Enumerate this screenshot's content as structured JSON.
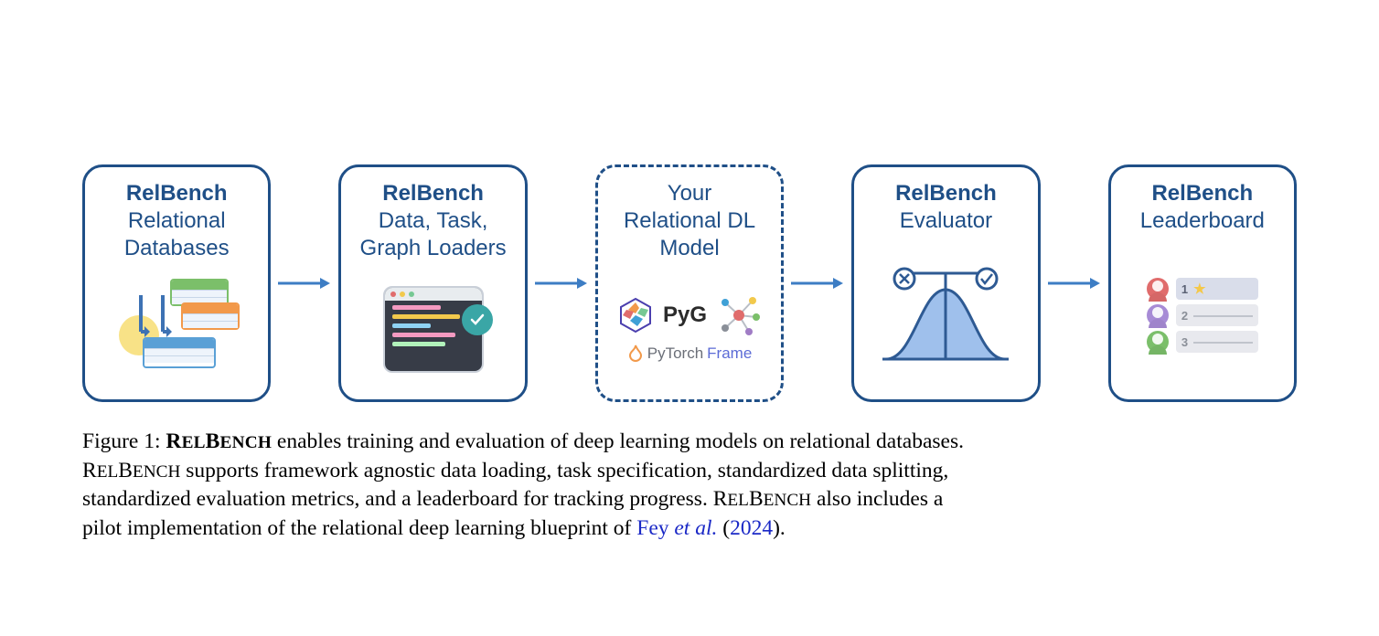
{
  "flow": {
    "border_color": "#1f4f87",
    "text_color": "#1f4f87",
    "dashed_color": "#1f4f87",
    "arrow_color": "#3d7dc4",
    "boxes": [
      {
        "title": "RelBench",
        "subtitle": "Relational\nDatabases"
      },
      {
        "title": "RelBench",
        "subtitle": "Data, Task,\nGraph Loaders"
      },
      {
        "title": "Your",
        "subtitle": "Relational DL\nModel",
        "dashed": true
      },
      {
        "title": "RelBench",
        "subtitle": "Evaluator"
      },
      {
        "title": "RelBench",
        "subtitle": "Leaderboard"
      }
    ]
  },
  "icons": {
    "db": {
      "table_colors": [
        "#7bbf6a",
        "#f2994a",
        "#5aa0d6"
      ],
      "circle_color": "#f7dd72",
      "arrow_color": "#3d72b4"
    },
    "code": {
      "dots": [
        "#e06c6c",
        "#f2c94c",
        "#76c893"
      ],
      "lines": [
        "#f49ac1",
        "#f2c94c",
        "#8fd3f4",
        "#f49ac1",
        "#b2f2bb"
      ]
    },
    "model": {
      "pyg_hex_colors": [
        "#4b3fae",
        "#f2994a",
        "#76c893",
        "#e06c6c",
        "#f7dd72",
        "#3fa0d6"
      ],
      "pyg_text": "PyG",
      "graph_nodes": [
        "#e06c6c",
        "#f2c94c",
        "#3fa0d6",
        "#7bbf6a",
        "#a07cc5",
        "#8a8f98"
      ],
      "ptf_flame": "#f2994a",
      "ptf_text1": "PyTorch",
      "ptf_text2": "Frame",
      "ptf_color1": "#6b6f78",
      "ptf_color2": "#5b6bd6"
    },
    "evaluator": {
      "curve_fill": "#9fc0ec",
      "curve_stroke": "#2e5a93",
      "cross": "#2e5a93",
      "check": "#2e5a93"
    },
    "leaderboard": {
      "avatars": [
        "#e06c6c",
        "#a78bd6",
        "#7bbf6a"
      ],
      "slots": [
        {
          "bg": "#d9ddea",
          "num": "1",
          "star": "#f4c84a"
        },
        {
          "bg": "#e8e9ee",
          "num": "2"
        },
        {
          "bg": "#e8e9ee",
          "num": "3"
        }
      ]
    }
  },
  "caption": {
    "fig_label": "Figure 1:",
    "brand": "RelBench",
    "line1_rest": " enables training and evaluation of deep learning models on relational databases.",
    "line2": " supports framework agnostic data loading, task specification, standardized data splitting,",
    "line3": "standardized evaluation metrics, and a leaderboard for tracking progress. ",
    "line3_rest": " also includes a",
    "line4_pre": "pilot implementation of the relational deep learning blueprint of ",
    "cite_author": "Fey ",
    "cite_etal": "et al.",
    "cite_paren_open": " (",
    "cite_year": "2024",
    "cite_paren_close": ").",
    "link_color": "#1a28c6"
  }
}
